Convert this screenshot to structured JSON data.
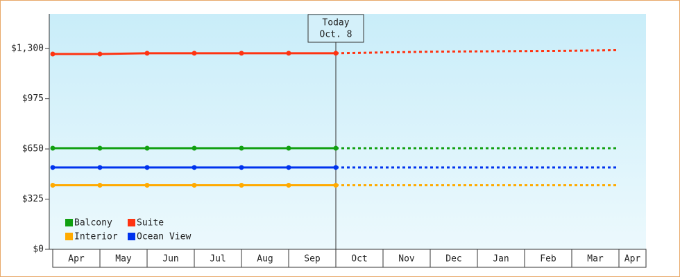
{
  "chart_data": {
    "type": "line",
    "categories": [
      "Apr",
      "May",
      "Jun",
      "Jul",
      "Aug",
      "Sep",
      "Oct",
      "Nov",
      "Dec",
      "Jan",
      "Feb",
      "Mar",
      "Apr"
    ],
    "forecast_from": "Oct",
    "annotation": {
      "label": "Today",
      "date": "Oct. 8"
    },
    "series": [
      {
        "name": "Balcony",
        "color": "#11a011",
        "values": [
          655,
          655,
          655,
          655,
          655,
          655,
          655,
          655,
          655,
          655,
          655,
          655,
          655
        ]
      },
      {
        "name": "Suite",
        "color": "#ff3311",
        "values": [
          1265,
          1265,
          1270,
          1270,
          1270,
          1270,
          1270,
          1275,
          1280,
          1282,
          1284,
          1286,
          1290
        ]
      },
      {
        "name": "Interior",
        "color": "#ffaa00",
        "values": [
          415,
          415,
          415,
          415,
          415,
          415,
          415,
          415,
          415,
          415,
          415,
          415,
          415
        ]
      },
      {
        "name": "Ocean View",
        "color": "#0033ee",
        "values": [
          530,
          530,
          530,
          530,
          530,
          530,
          530,
          530,
          530,
          530,
          530,
          530,
          530
        ]
      }
    ],
    "ylim": [
      0,
      1525
    ],
    "yticks": [
      {
        "value": 0,
        "label": "$0"
      },
      {
        "value": 325,
        "label": "$325"
      },
      {
        "value": 650,
        "label": "$650"
      },
      {
        "value": 975,
        "label": "$975"
      },
      {
        "value": 1300,
        "label": "$1,300"
      }
    ],
    "legend": "bottom-left"
  }
}
